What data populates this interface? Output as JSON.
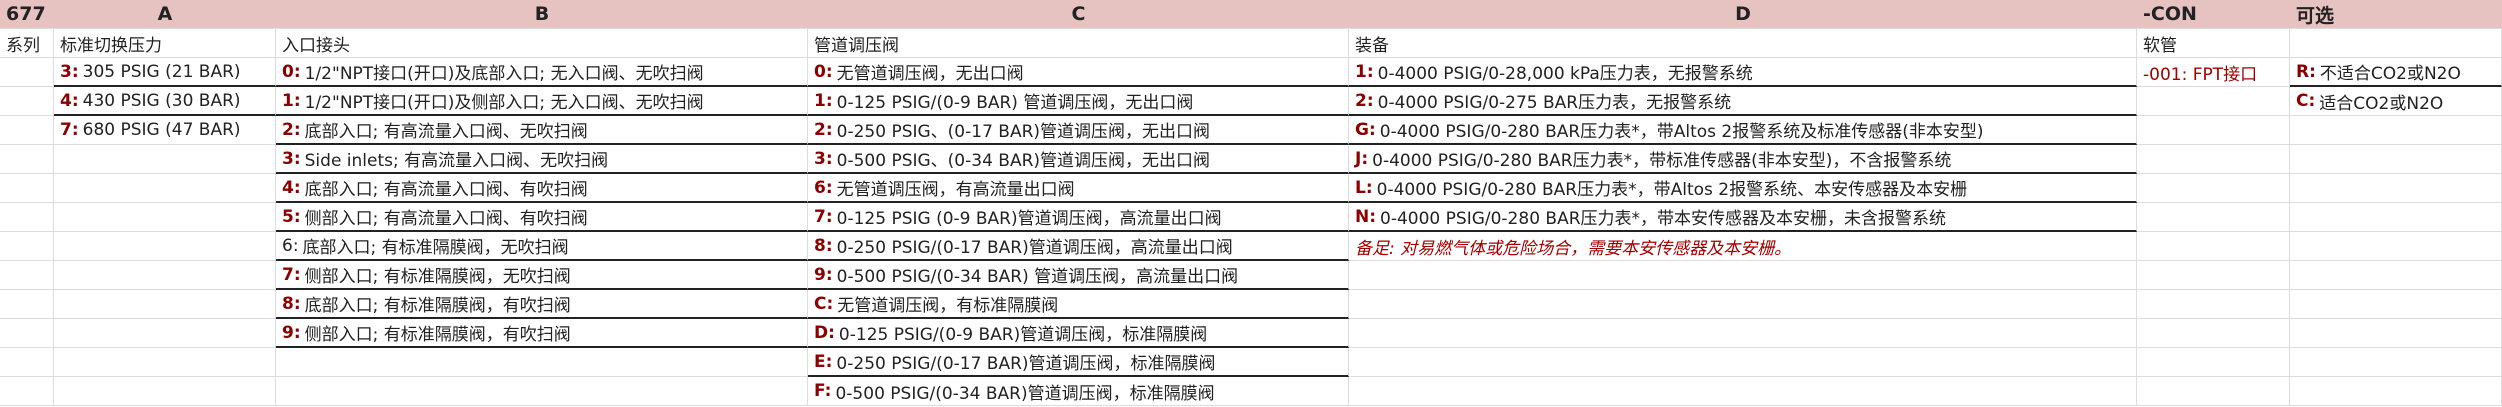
{
  "header": {
    "series": "677",
    "cols": [
      "A",
      "B",
      "C",
      "D",
      "-CON",
      "可选"
    ]
  },
  "subheaders": [
    "系列",
    "标准切换压力",
    "入口接头",
    "管道调压阀",
    "装备",
    "软管",
    ""
  ],
  "columns": {
    "A": [
      {
        "code": "3:",
        "text": "305 PSIG (21 BAR)"
      },
      {
        "code": "4:",
        "text": "430 PSIG (30 BAR)"
      },
      {
        "code": "7:",
        "text": "680 PSIG (47 BAR)"
      }
    ],
    "B": [
      {
        "code": "0:",
        "text": "1/2\"NPT接口(开口)及底部入口; 无入口阀、无吹扫阀"
      },
      {
        "code": "1:",
        "text": "1/2\"NPT接口(开口)及侧部入口; 无入口阀、无吹扫阀"
      },
      {
        "code": "2:",
        "text": "底部入口; 有高流量入口阀、无吹扫阀"
      },
      {
        "code": "3:",
        "text": "Side inlets; 有高流量入口阀、无吹扫阀"
      },
      {
        "code": "4:",
        "text": "底部入口; 有高流量入口阀、有吹扫阀"
      },
      {
        "code": "5:",
        "text": "侧部入口; 有高流量入口阀、有吹扫阀"
      },
      {
        "code": "6:",
        "text": "底部入口; 有标准隔膜阀，无吹扫阀",
        "plain": true
      },
      {
        "code": "7:",
        "text": "侧部入口; 有标准隔膜阀，无吹扫阀"
      },
      {
        "code": "8:",
        "text": "底部入口; 有标准隔膜阀，有吹扫阀"
      },
      {
        "code": "9:",
        "text": "侧部入口; 有标准隔膜阀，有吹扫阀"
      }
    ],
    "C": [
      {
        "code": "0:",
        "text": "无管道调压阀，无出口阀"
      },
      {
        "code": "1:",
        "text": "0-125 PSIG/(0-9 BAR) 管道调压阀，无出口阀"
      },
      {
        "code": "2:",
        "text": "0-250 PSIG、(0-17  BAR)管道调压阀，无出口阀"
      },
      {
        "code": "3:",
        "text": "0-500 PSIG、(0-34  BAR)管道调压阀，无出口阀"
      },
      {
        "code": "6:",
        "text": "无管道调压阀，有高流量出口阀"
      },
      {
        "code": "7:",
        "text": " 0-125 PSIG (0-9 BAR)管道调压阀，高流量出口阀"
      },
      {
        "code": "8:",
        "text": "0-250 PSIG/(0-17  BAR)管道调压阀，高流量出口阀"
      },
      {
        "code": "9:",
        "text": "0-500 PSIG/(0-34  BAR) 管道调压阀，高流量出口阀"
      },
      {
        "code": "C:",
        "text": "无管道调压阀，有标准隔膜阀"
      },
      {
        "code": "D:",
        "text": "0-125 PSIG/(0-9 BAR)管道调压阀，标准隔膜阀"
      },
      {
        "code": "E:",
        "text": "0-250 PSIG/(0-17  BAR)管道调压阀，标准隔膜阀"
      },
      {
        "code": "F:",
        "text": "0-500 PSIG/(0-34  BAR)管道调压阀，标准隔膜阀"
      }
    ],
    "D": [
      {
        "code": "1:",
        "text": "0-4000 PSIG/0-28,000 kPa压力表，无报警系统"
      },
      {
        "code": "2:",
        "text": "0-4000 PSIG/0-275 BAR压力表，无报警系统"
      },
      {
        "code": "G:",
        "text": "0-4000 PSIG/0-280 BAR压力表*，带Altos 2报警系统及标准传感器(非本安型)"
      },
      {
        "code": "J:",
        "text": "0-4000 PSIG/0-280 BAR压力表*，带标准传感器(非本安型)，不含报警系统"
      },
      {
        "code": "L:",
        "text": "0-4000 PSIG/0-280 BAR压力表*，带Altos 2报警系统、本安传感器及本安栅"
      },
      {
        "code": "N:",
        "text": "0-4000 PSIG/0-280 BAR压力表*，带本安传感器及本安栅，未含报警系统"
      }
    ],
    "D_note": "备足: 对易燃气体或危险场合，需要本安传感器及本安栅。",
    "CON": [
      {
        "text": "-001: FPT接口"
      }
    ],
    "OPT": [
      {
        "code": "R:",
        "text": "不适合CO2或N2O"
      },
      {
        "code": "C:",
        "text": "适合CO2或N2O"
      }
    ]
  },
  "colors": {
    "header_bg": "#e6c2c0",
    "code": "#8b0000"
  }
}
